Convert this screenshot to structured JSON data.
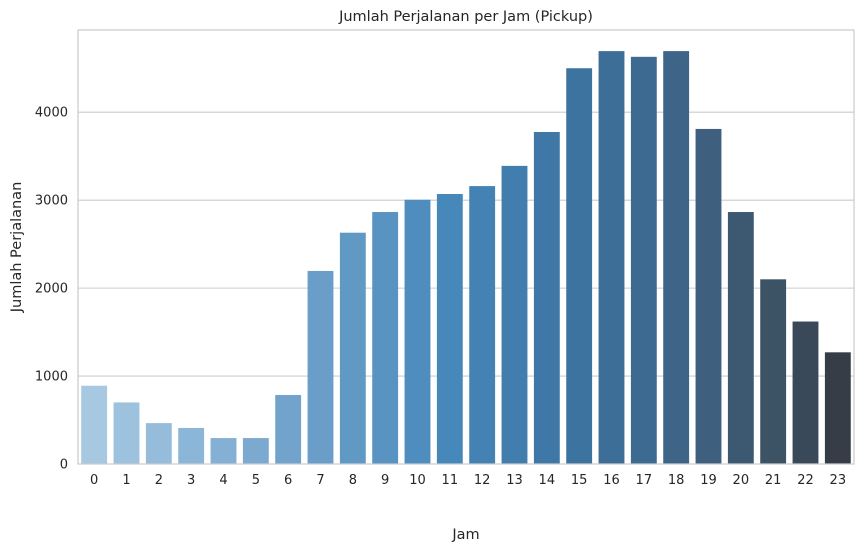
{
  "chart_data": {
    "type": "bar",
    "title": "Jumlah Perjalanan per Jam (Pickup)",
    "xlabel": "Jam",
    "ylabel": "Jumlah Perjalanan",
    "categories": [
      "0",
      "1",
      "2",
      "3",
      "4",
      "5",
      "6",
      "7",
      "8",
      "9",
      "10",
      "11",
      "12",
      "13",
      "14",
      "15",
      "16",
      "17",
      "18",
      "19",
      "20",
      "21",
      "22",
      "23"
    ],
    "values": [
      890,
      700,
      465,
      410,
      295,
      295,
      785,
      2195,
      2630,
      2865,
      3005,
      3070,
      3160,
      3390,
      3775,
      4500,
      4695,
      4630,
      4695,
      3810,
      2865,
      2100,
      1620,
      1270
    ],
    "ylim": [
      0,
      4935
    ],
    "yticks": [
      0,
      1000,
      2000,
      3000,
      4000
    ],
    "grid": "horizontal",
    "colors": [
      "#a6c8e0",
      "#9dc2dd",
      "#95bcda",
      "#8cb6d7",
      "#83b0d4",
      "#7ba9d0",
      "#72a3cc",
      "#6a9ec9",
      "#6199c5",
      "#5893c2",
      "#4e8dbe",
      "#4788ba",
      "#4482b4",
      "#427ead",
      "#3f78a6",
      "#3d739f",
      "#3d6e97",
      "#3d6a90",
      "#3e6588",
      "#3e5f7e",
      "#3d5972",
      "#3c5265",
      "#3a4959",
      "#373d47"
    ]
  }
}
